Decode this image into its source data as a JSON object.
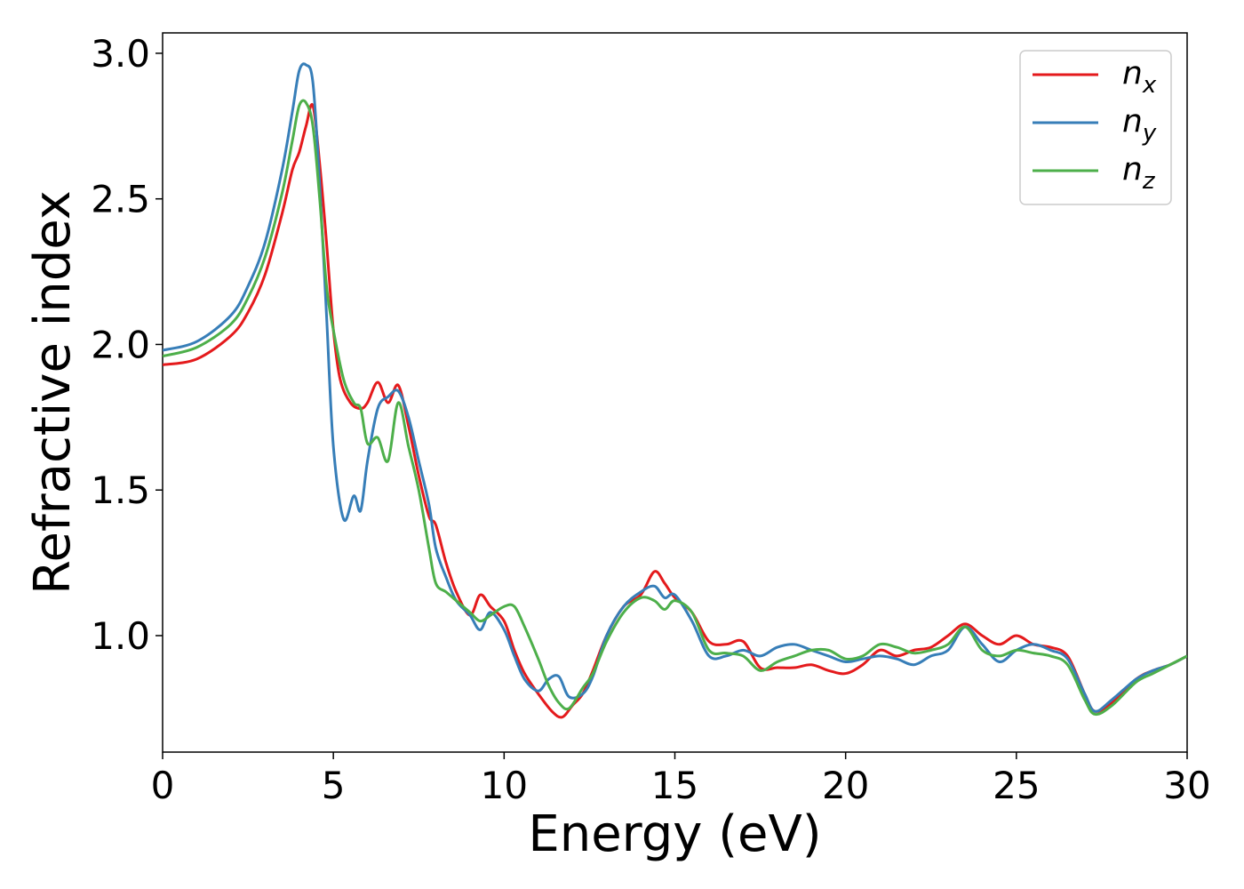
{
  "chart_data": {
    "type": "line",
    "title": "",
    "xlabel": "Energy (eV)",
    "ylabel": "Refractive index",
    "xlim": [
      0,
      30
    ],
    "ylim": [
      0.6,
      3.07
    ],
    "xticks": [
      "0",
      "5",
      "10",
      "15",
      "20",
      "25",
      "30"
    ],
    "yticks": [
      "1.0",
      "1.5",
      "2.0",
      "2.5",
      "3.0"
    ],
    "grid": false,
    "legend_position": "top-right",
    "series": [
      {
        "name": "n_x",
        "label_base": "n",
        "label_sub": "x",
        "color": "#e41a1c",
        "x": [
          0,
          1,
          2,
          2.5,
          3,
          3.5,
          3.8,
          4.0,
          4.2,
          4.4,
          4.6,
          4.8,
          5.0,
          5.2,
          5.5,
          5.8,
          6.0,
          6.3,
          6.6,
          6.9,
          7.2,
          7.5,
          7.8,
          8.0,
          8.3,
          8.6,
          9.0,
          9.3,
          9.6,
          10.0,
          10.3,
          10.6,
          11.0,
          11.4,
          11.7,
          12.0,
          12.3,
          12.6,
          13.0,
          13.5,
          14.0,
          14.4,
          14.7,
          15.0,
          15.5,
          16.0,
          16.5,
          17.0,
          17.5,
          18.0,
          18.5,
          19.0,
          19.5,
          20.0,
          20.5,
          21.0,
          21.5,
          22.0,
          22.5,
          23.0,
          23.5,
          24.0,
          24.5,
          25.0,
          25.5,
          26.0,
          26.5,
          27.0,
          27.3,
          27.8,
          28.5,
          29.0,
          29.5,
          30.0
        ],
        "y": [
          1.93,
          1.95,
          2.03,
          2.11,
          2.24,
          2.45,
          2.6,
          2.66,
          2.75,
          2.82,
          2.62,
          2.35,
          2.05,
          1.88,
          1.8,
          1.78,
          1.8,
          1.87,
          1.8,
          1.86,
          1.72,
          1.55,
          1.41,
          1.38,
          1.25,
          1.15,
          1.07,
          1.14,
          1.1,
          1.05,
          0.95,
          0.87,
          0.8,
          0.74,
          0.72,
          0.76,
          0.8,
          0.88,
          1.0,
          1.1,
          1.14,
          1.22,
          1.18,
          1.13,
          1.08,
          0.98,
          0.97,
          0.98,
          0.89,
          0.89,
          0.89,
          0.9,
          0.88,
          0.87,
          0.9,
          0.95,
          0.93,
          0.95,
          0.96,
          1.0,
          1.04,
          1.0,
          0.97,
          1.0,
          0.97,
          0.96,
          0.93,
          0.8,
          0.74,
          0.77,
          0.85,
          0.88,
          0.9,
          0.93
        ]
      },
      {
        "name": "n_y",
        "label_base": "n",
        "label_sub": "y",
        "color": "#377eb8",
        "x": [
          0,
          1,
          2,
          2.5,
          3,
          3.5,
          3.8,
          4.0,
          4.2,
          4.4,
          4.6,
          4.8,
          5.0,
          5.3,
          5.6,
          5.8,
          6.0,
          6.3,
          6.6,
          6.9,
          7.2,
          7.5,
          7.8,
          8.0,
          8.3,
          8.6,
          9.0,
          9.3,
          9.6,
          10.0,
          10.3,
          10.6,
          11.0,
          11.3,
          11.6,
          11.9,
          12.3,
          12.6,
          13.0,
          13.5,
          14.0,
          14.4,
          14.7,
          15.0,
          15.5,
          16.0,
          16.5,
          17.0,
          17.5,
          18.0,
          18.5,
          19.0,
          19.5,
          20.0,
          20.5,
          21.0,
          21.5,
          22.0,
          22.5,
          23.0,
          23.5,
          24.0,
          24.5,
          25.0,
          25.5,
          26.0,
          26.5,
          27.0,
          27.3,
          27.8,
          28.5,
          29.0,
          29.5,
          30.0
        ],
        "y": [
          1.98,
          2.01,
          2.1,
          2.2,
          2.35,
          2.6,
          2.8,
          2.94,
          2.96,
          2.9,
          2.55,
          2.1,
          1.65,
          1.4,
          1.48,
          1.43,
          1.6,
          1.78,
          1.82,
          1.84,
          1.75,
          1.6,
          1.45,
          1.3,
          1.2,
          1.12,
          1.07,
          1.02,
          1.08,
          1.02,
          0.93,
          0.85,
          0.81,
          0.85,
          0.86,
          0.79,
          0.8,
          0.86,
          1.0,
          1.1,
          1.15,
          1.17,
          1.13,
          1.14,
          1.05,
          0.93,
          0.93,
          0.95,
          0.93,
          0.96,
          0.97,
          0.95,
          0.93,
          0.91,
          0.92,
          0.93,
          0.92,
          0.9,
          0.93,
          0.95,
          1.03,
          0.97,
          0.91,
          0.95,
          0.97,
          0.95,
          0.92,
          0.8,
          0.74,
          0.78,
          0.85,
          0.88,
          0.9,
          0.93
        ]
      },
      {
        "name": "n_z",
        "label_base": "n",
        "label_sub": "z",
        "color": "#4daf4a",
        "x": [
          0,
          1,
          2,
          2.5,
          3,
          3.5,
          3.8,
          4.0,
          4.2,
          4.4,
          4.6,
          4.8,
          5.0,
          5.3,
          5.6,
          5.8,
          6.0,
          6.3,
          6.6,
          6.9,
          7.2,
          7.5,
          7.8,
          8.0,
          8.3,
          8.6,
          9.0,
          9.3,
          9.6,
          10.0,
          10.3,
          10.6,
          11.0,
          11.3,
          11.6,
          11.9,
          12.3,
          12.6,
          13.0,
          13.5,
          14.0,
          14.4,
          14.7,
          15.0,
          15.5,
          16.0,
          16.5,
          17.0,
          17.5,
          18.0,
          18.5,
          19.0,
          19.5,
          20.0,
          20.5,
          21.0,
          21.5,
          22.0,
          22.5,
          23.0,
          23.5,
          24.0,
          24.5,
          25.0,
          25.5,
          26.0,
          26.5,
          27.0,
          27.3,
          27.8,
          28.5,
          29.0,
          29.5,
          30.0
        ],
        "y": [
          1.96,
          1.99,
          2.07,
          2.16,
          2.3,
          2.52,
          2.7,
          2.82,
          2.83,
          2.75,
          2.5,
          2.2,
          2.05,
          1.88,
          1.8,
          1.78,
          1.66,
          1.68,
          1.6,
          1.8,
          1.65,
          1.5,
          1.3,
          1.18,
          1.15,
          1.12,
          1.08,
          1.05,
          1.07,
          1.1,
          1.1,
          1.03,
          0.92,
          0.83,
          0.77,
          0.75,
          0.82,
          0.87,
          0.98,
          1.08,
          1.13,
          1.12,
          1.09,
          1.12,
          1.08,
          0.95,
          0.94,
          0.93,
          0.88,
          0.91,
          0.93,
          0.95,
          0.95,
          0.92,
          0.93,
          0.97,
          0.96,
          0.94,
          0.95,
          0.97,
          1.03,
          0.95,
          0.93,
          0.95,
          0.94,
          0.93,
          0.9,
          0.78,
          0.73,
          0.76,
          0.84,
          0.87,
          0.9,
          0.93
        ]
      }
    ]
  }
}
